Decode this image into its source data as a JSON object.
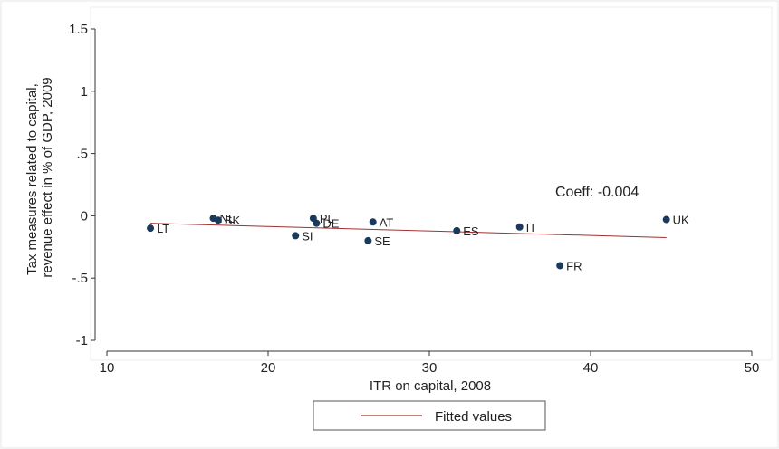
{
  "chart_data": {
    "type": "scatter",
    "xlabel": "ITR on capital, 2008",
    "ylabel_lines": [
      "Tax measures related to capital,",
      "revenue effect in % of GDP, 2009"
    ],
    "xlim": [
      10,
      50
    ],
    "ylim": [
      -1,
      1.5
    ],
    "x_ticks": [
      10,
      20,
      30,
      40,
      50
    ],
    "x_tick_labels": [
      "10",
      "20",
      "30",
      "40",
      "50"
    ],
    "y_ticks": [
      -1,
      -0.5,
      0,
      0.5,
      1,
      1.5
    ],
    "y_tick_labels": [
      "-1",
      "-.5",
      "0",
      ".5",
      "1",
      "1.5"
    ],
    "grid": false,
    "legend_position": "bottom",
    "annotation": "Coeff: -0.004",
    "marker_color": "#1a3a5c",
    "fit_color": "#a03030",
    "points": [
      {
        "label": "LT",
        "x": 12.7,
        "y": -0.1
      },
      {
        "label": "NL",
        "x": 16.6,
        "y": -0.02
      },
      {
        "label": "SK",
        "x": 16.9,
        "y": -0.035
      },
      {
        "label": "SI",
        "x": 21.7,
        "y": -0.16
      },
      {
        "label": "PL",
        "x": 22.8,
        "y": -0.02
      },
      {
        "label": "DE",
        "x": 23.0,
        "y": -0.06
      },
      {
        "label": "SE",
        "x": 26.2,
        "y": -0.2
      },
      {
        "label": "AT",
        "x": 26.5,
        "y": -0.05
      },
      {
        "label": "ES",
        "x": 31.7,
        "y": -0.12
      },
      {
        "label": "IT",
        "x": 35.6,
        "y": -0.09
      },
      {
        "label": "FR",
        "x": 38.1,
        "y": -0.4
      },
      {
        "label": "UK",
        "x": 44.7,
        "y": -0.03
      }
    ],
    "fitted": {
      "name": "Fitted values",
      "x": [
        12.7,
        44.7
      ],
      "y": [
        -0.06,
        -0.175
      ]
    }
  }
}
